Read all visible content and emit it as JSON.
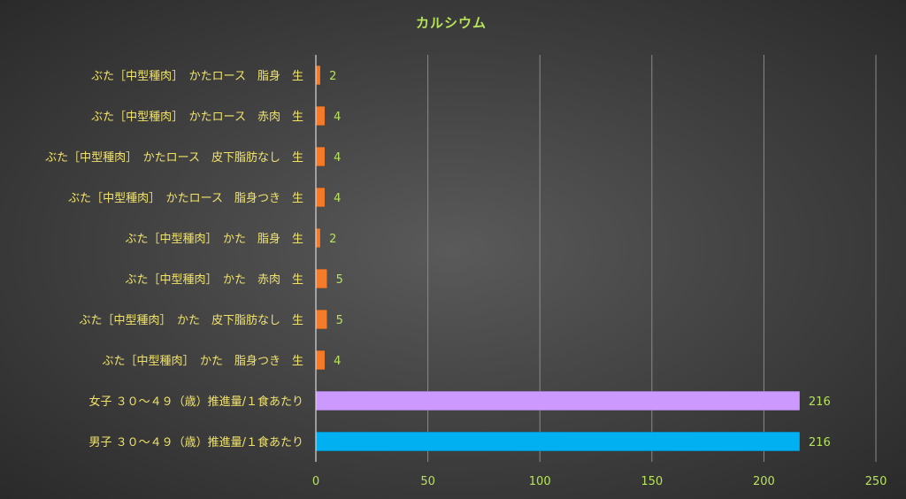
{
  "chart_data": {
    "type": "bar",
    "orientation": "horizontal",
    "title": "カルシウム",
    "categories": [
      "ぶた［中型種肉］　かたロース　脂身　生",
      "ぶた［中型種肉］　かたロース　赤肉　生",
      "ぶた［中型種肉］　かたロース　皮下脂肪なし　生",
      "ぶた［中型種肉］　かたロース　脂身つき　生",
      "ぶた［中型種肉］　かた　脂身　生",
      "ぶた［中型種肉］　かた　赤肉　生",
      "ぶた［中型種肉］　かた　皮下脂肪なし　生",
      "ぶた［中型種肉］　かた　脂身つき　生",
      "女子 ３０～４９（歳）推進量/１食あたり",
      "男子 ３０～４９（歳）推進量/１食あたり"
    ],
    "values": [
      2,
      4,
      4,
      4,
      2,
      5,
      5,
      4,
      216,
      216
    ],
    "bar_colors": [
      "#f47b2a",
      "#f47b2a",
      "#f47b2a",
      "#f47b2a",
      "#f47b2a",
      "#f47b2a",
      "#f47b2a",
      "#f47b2a",
      "#cc99ff",
      "#00b0f0"
    ],
    "xlim": [
      0,
      250
    ],
    "xticks": [
      0,
      50,
      100,
      150,
      200,
      250
    ],
    "grid": true,
    "legend": "none"
  }
}
